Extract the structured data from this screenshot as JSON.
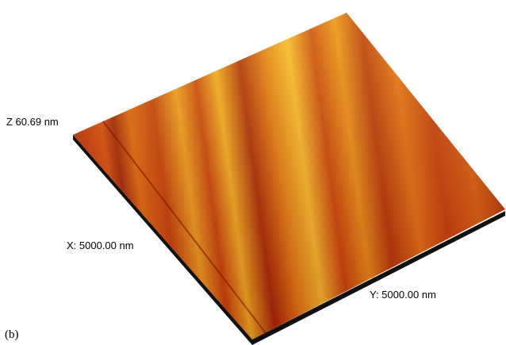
{
  "labels": {
    "z": "Z 60.69 nm",
    "x": "X: 5000.00 nm",
    "y": "Y: 5000.00 nm"
  },
  "panel_label": "(b)"
}
